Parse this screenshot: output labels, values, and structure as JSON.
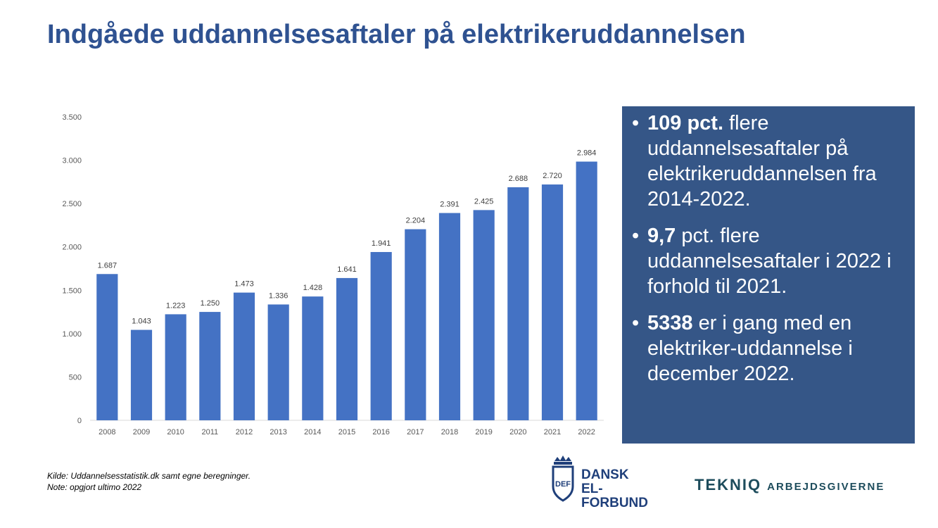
{
  "slide": {
    "title": "Indgåede uddannelsesaftaler på elektrikeruddannelsen"
  },
  "chart_data": {
    "type": "bar",
    "title": "",
    "xlabel": "",
    "ylabel": "",
    "categories": [
      "2008",
      "2009",
      "2010",
      "2011",
      "2012",
      "2013",
      "2014",
      "2015",
      "2016",
      "2017",
      "2018",
      "2019",
      "2020",
      "2021",
      "2022"
    ],
    "values": [
      1687,
      1043,
      1223,
      1250,
      1473,
      1336,
      1428,
      1641,
      1941,
      2204,
      2391,
      2425,
      2688,
      2720,
      2984
    ],
    "value_labels": [
      "1.687",
      "1.043",
      "1.223",
      "1.250",
      "1.473",
      "1.336",
      "1.428",
      "1.641",
      "1.941",
      "2.204",
      "2.391",
      "2.425",
      "2.688",
      "2.720",
      "2.984"
    ],
    "y_ticks": [
      0,
      500,
      1000,
      1500,
      2000,
      2500,
      3000,
      3500
    ],
    "y_tick_labels": [
      "0",
      "500",
      "1.000",
      "1.500",
      "2.000",
      "2.500",
      "3.000",
      "3.500"
    ],
    "ylim": [
      0,
      3500
    ],
    "grid": false,
    "legend": "none",
    "bar_color": "#4472c4"
  },
  "panel": {
    "background": "#355687",
    "bullets": [
      {
        "bold": "109 pct.",
        "text": " flere uddannelsesaftaler på elektrikeruddannelsen fra 2014-2022."
      },
      {
        "bold": "9,7",
        "text": " pct. flere uddannelsesaftaler i 2022 i forhold til 2021."
      },
      {
        "bold": "5338",
        "text": " er i gang med en elektriker-uddannelse i december 2022."
      }
    ]
  },
  "footer": {
    "source": "Kilde: Uddannelsesstatistik.dk samt egne beregninger.",
    "note": "Note: opgjort ultimo 2022"
  },
  "logos": {
    "def_line1": "DANSK",
    "def_line2": "EL-FORBUND",
    "def_emblem_letters": "DEF",
    "tekniq_main": "TEKNIQ",
    "tekniq_sub": "ARBEJDSGIVERNE"
  }
}
